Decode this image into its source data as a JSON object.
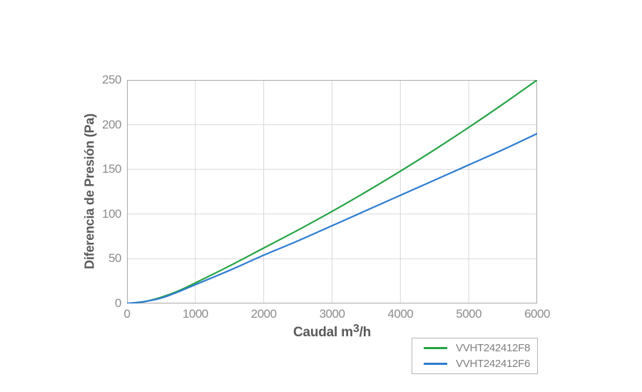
{
  "chart_data": {
    "type": "line",
    "title": "",
    "xlabel": "Caudal m3/h",
    "xlabel_parts": {
      "prefix": "Caudal m",
      "sup": "3",
      "suffix": "/h"
    },
    "ylabel": "Diferencia de Presión  (Pa)",
    "xlim": [
      0,
      6000
    ],
    "ylim": [
      0,
      250
    ],
    "x_ticks": [
      0,
      1000,
      2000,
      3000,
      4000,
      5000,
      6000
    ],
    "y_ticks": [
      0,
      50,
      100,
      150,
      200,
      250
    ],
    "grid": true,
    "legend_position": "outside-bottom-right",
    "series": [
      {
        "name": "VVHT242412F8",
        "color": "#25A344",
        "x": [
          0,
          250,
          500,
          750,
          1000,
          1500,
          2000,
          2500,
          3000,
          3500,
          4000,
          4500,
          5000,
          5500,
          6000
        ],
        "y": [
          0,
          2,
          7,
          14,
          23,
          42,
          62,
          82,
          103,
          125,
          148,
          172,
          197,
          223,
          250
        ]
      },
      {
        "name": "VVHT242412F6",
        "color": "#2E7CD1",
        "x": [
          0,
          250,
          500,
          750,
          1000,
          1500,
          2000,
          2500,
          3000,
          3500,
          4000,
          4500,
          5000,
          5500,
          6000
        ],
        "y": [
          0,
          2,
          6,
          13,
          21,
          37,
          54,
          70,
          87,
          104,
          121,
          138,
          155,
          172,
          190
        ]
      }
    ]
  },
  "style_colors": {
    "grid": "#d8d8d8",
    "plot_border": "#a9a9a9",
    "tick_text": "#8c8c8c",
    "title_text": "#595959",
    "legend_border": "#b5b5b5",
    "legend_text": "#7f7f7f"
  }
}
